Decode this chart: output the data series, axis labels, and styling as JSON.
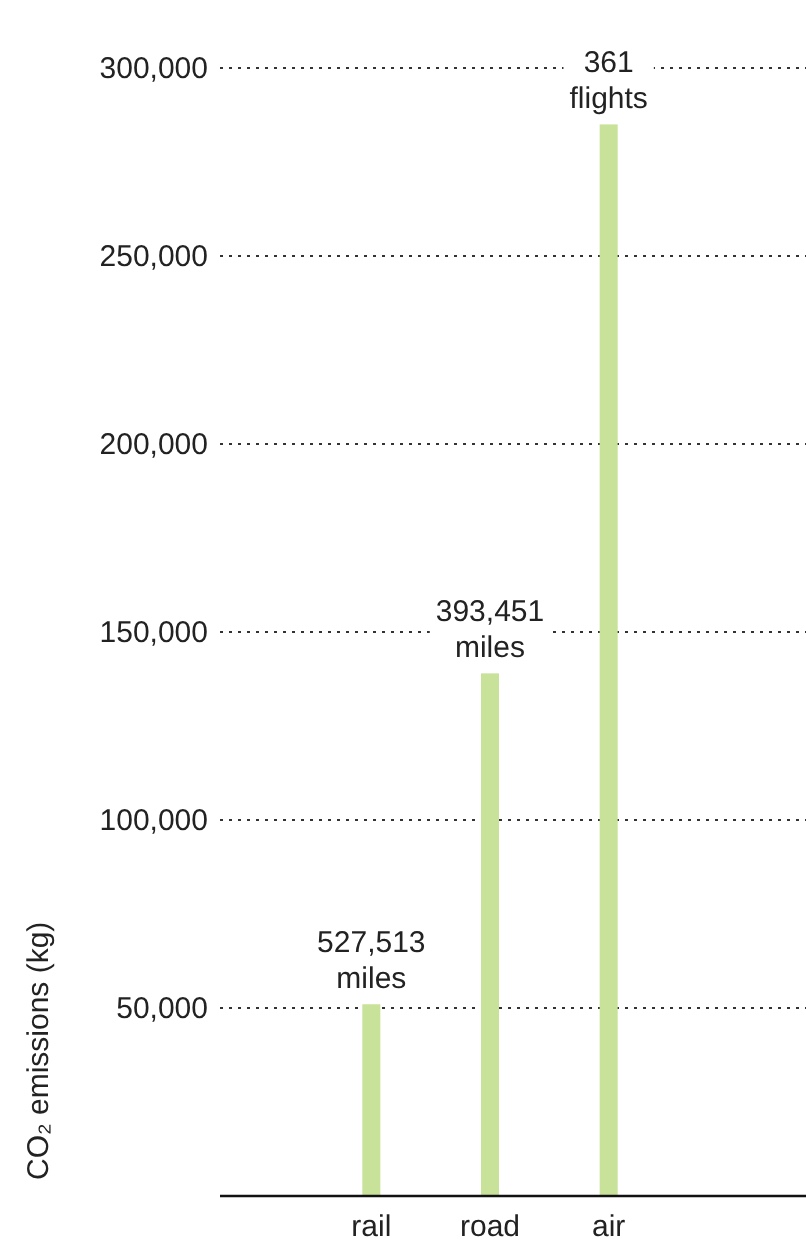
{
  "chart_data": {
    "type": "bar",
    "ylabel": "CO₂ emissions (kg)",
    "categories": [
      "rail",
      "road",
      "air"
    ],
    "values": [
      51000,
      139000,
      285000
    ],
    "annotations": [
      {
        "text": "527,513 miles",
        "x": "rail",
        "y": 51000
      },
      {
        "text": "393,451 miles",
        "x": "road",
        "y": 139000
      },
      {
        "text": "361 flights",
        "x": "air",
        "y": 285000
      }
    ],
    "color": "#c8e29a",
    "ylim": [
      0,
      300000
    ],
    "yticks": [
      {
        "value": 0,
        "label": null
      },
      {
        "value": 50000,
        "label": "50,000"
      },
      {
        "value": 100000,
        "label": "100,000"
      },
      {
        "value": 150000,
        "label": "150,000"
      },
      {
        "value": 200000,
        "label": "200,000"
      },
      {
        "value": 250000,
        "label": "250,000"
      },
      {
        "value": 300000,
        "label": "300,000"
      }
    ],
    "grid": "y"
  }
}
